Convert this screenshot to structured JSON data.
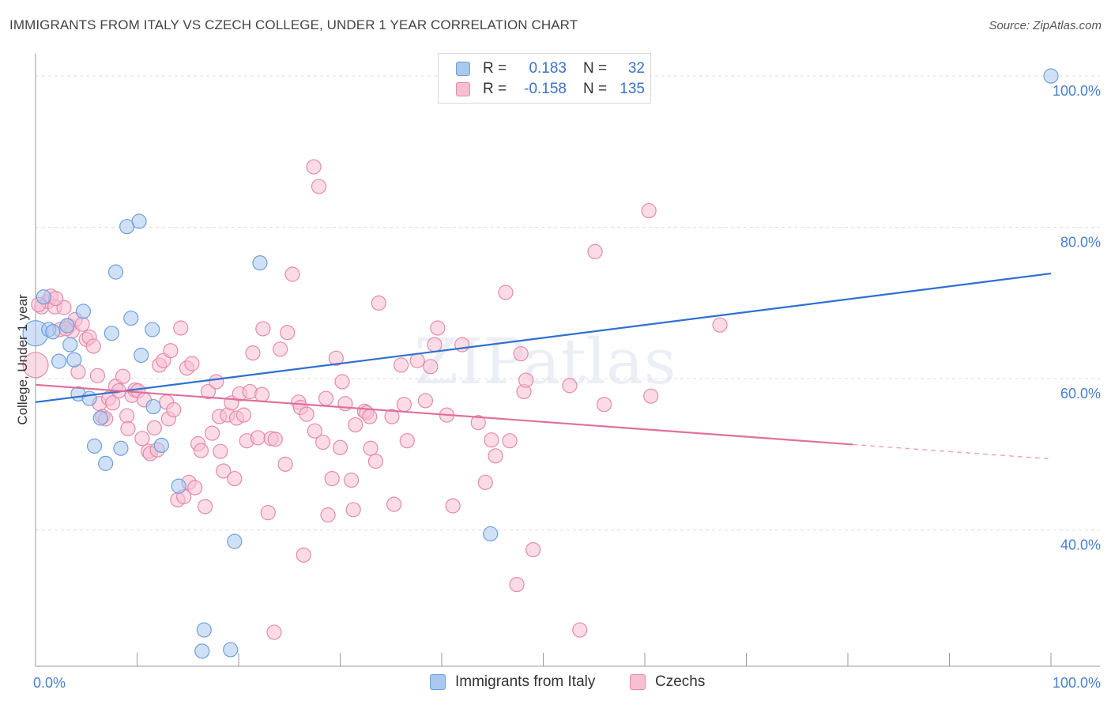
{
  "title": "IMMIGRANTS FROM ITALY VS CZECH COLLEGE, UNDER 1 YEAR CORRELATION CHART",
  "source": "Source: ZipAtlas.com",
  "watermark": "ZIPatlas",
  "legend": {
    "rows": [
      {
        "r_label": "R =",
        "r_value": "0.183",
        "n_label": "N =",
        "n_value": "32",
        "color": "#a9c8f0",
        "border": "#6f9fdc"
      },
      {
        "r_label": "R =",
        "r_value": "-0.158",
        "n_label": "N =",
        "n_value": "135",
        "color": "#f7bfd2",
        "border": "#e58aab"
      }
    ]
  },
  "bottom_legend": [
    {
      "label": "Immigrants from Italy",
      "color": "#a9c8f0",
      "border": "#6f9fdc"
    },
    {
      "label": "Czechs",
      "color": "#f7bfd2",
      "border": "#e58aab"
    }
  ],
  "chart_data": {
    "type": "scatter",
    "xlabel": "",
    "ylabel": "College, Under 1 year",
    "xlim": [
      0,
      100
    ],
    "ylim": [
      22,
      102
    ],
    "x_tick_labels": [
      "0.0%",
      "100.0%"
    ],
    "y_ticks": [
      40,
      60,
      80,
      100
    ],
    "y_tick_labels": [
      "40.0%",
      "60.0%",
      "80.0%",
      "100.0%"
    ],
    "grid": true,
    "series": [
      {
        "name": "Immigrants from Italy",
        "color": "#6f9fdc",
        "fill": "#a9c8f0",
        "trend": {
          "x": [
            0,
            100
          ],
          "y": [
            56.9,
            73.9
          ],
          "color": "#2f6fd0"
        },
        "points": [
          [
            0.0,
            66.0
          ],
          [
            0.8,
            70.8
          ],
          [
            1.3,
            66.5
          ],
          [
            1.7,
            66.2
          ],
          [
            2.3,
            62.3
          ],
          [
            3.1,
            67.0
          ],
          [
            3.4,
            64.5
          ],
          [
            3.8,
            62.5
          ],
          [
            4.2,
            58.0
          ],
          [
            4.7,
            68.9
          ],
          [
            5.3,
            57.4
          ],
          [
            5.8,
            51.1
          ],
          [
            6.4,
            54.8
          ],
          [
            6.9,
            48.8
          ],
          [
            7.5,
            66.0
          ],
          [
            7.9,
            74.1
          ],
          [
            8.4,
            50.8
          ],
          [
            9.0,
            80.1
          ],
          [
            9.4,
            68.0
          ],
          [
            10.2,
            80.8
          ],
          [
            10.4,
            63.1
          ],
          [
            11.5,
            66.5
          ],
          [
            11.6,
            56.3
          ],
          [
            12.4,
            51.2
          ],
          [
            14.1,
            45.8
          ],
          [
            16.4,
            24.0
          ],
          [
            16.6,
            26.8
          ],
          [
            19.2,
            24.2
          ],
          [
            19.6,
            38.5
          ],
          [
            22.1,
            75.3
          ],
          [
            44.8,
            39.5
          ],
          [
            100.0,
            100.0
          ]
        ]
      },
      {
        "name": "Czechs",
        "color": "#e58aab",
        "fill": "#f7bfd2",
        "trend": {
          "x": [
            0,
            80.5
          ],
          "y": [
            59.2,
            51.3
          ],
          "dash_to": [
            100,
            49.4
          ],
          "color": "#e0709a"
        },
        "points": [
          [
            0.0,
            61.8
          ],
          [
            0.6,
            69.5
          ],
          [
            1.2,
            70.2
          ],
          [
            1.5,
            70.9
          ],
          [
            1.9,
            69.5
          ],
          [
            2.4,
            66.5
          ],
          [
            2.8,
            69.4
          ],
          [
            3.3,
            67.0
          ],
          [
            3.6,
            66.3
          ],
          [
            3.9,
            67.8
          ],
          [
            4.2,
            60.9
          ],
          [
            4.6,
            67.2
          ],
          [
            5.0,
            65.2
          ],
          [
            5.3,
            65.5
          ],
          [
            5.7,
            64.3
          ],
          [
            6.1,
            60.4
          ],
          [
            6.3,
            56.7
          ],
          [
            6.6,
            55.0
          ],
          [
            6.9,
            54.7
          ],
          [
            7.2,
            57.4
          ],
          [
            7.6,
            56.8
          ],
          [
            7.9,
            59.0
          ],
          [
            8.2,
            58.4
          ],
          [
            8.6,
            60.3
          ],
          [
            9.0,
            55.1
          ],
          [
            9.1,
            53.4
          ],
          [
            9.5,
            57.8
          ],
          [
            9.8,
            58.5
          ],
          [
            10.1,
            58.4
          ],
          [
            10.5,
            52.1
          ],
          [
            10.7,
            57.2
          ],
          [
            11.1,
            50.4
          ],
          [
            11.3,
            50.1
          ],
          [
            11.7,
            53.5
          ],
          [
            12.0,
            50.6
          ],
          [
            12.2,
            61.8
          ],
          [
            12.6,
            62.4
          ],
          [
            12.9,
            56.9
          ],
          [
            13.1,
            54.7
          ],
          [
            13.3,
            63.7
          ],
          [
            13.6,
            55.9
          ],
          [
            14.0,
            44.0
          ],
          [
            14.3,
            66.7
          ],
          [
            14.6,
            44.4
          ],
          [
            14.9,
            61.4
          ],
          [
            15.1,
            46.3
          ],
          [
            15.4,
            62.0
          ],
          [
            15.7,
            45.6
          ],
          [
            16.0,
            51.4
          ],
          [
            16.3,
            50.5
          ],
          [
            16.7,
            43.1
          ],
          [
            17.0,
            58.3
          ],
          [
            17.4,
            52.8
          ],
          [
            17.8,
            59.6
          ],
          [
            18.1,
            55.0
          ],
          [
            18.2,
            50.4
          ],
          [
            18.5,
            47.8
          ],
          [
            18.9,
            55.2
          ],
          [
            19.3,
            56.8
          ],
          [
            19.6,
            46.8
          ],
          [
            19.8,
            54.8
          ],
          [
            20.1,
            58.0
          ],
          [
            20.5,
            55.2
          ],
          [
            20.8,
            51.8
          ],
          [
            21.1,
            58.3
          ],
          [
            21.4,
            63.4
          ],
          [
            21.9,
            52.2
          ],
          [
            22.3,
            57.9
          ],
          [
            22.4,
            66.6
          ],
          [
            22.9,
            42.3
          ],
          [
            23.2,
            52.1
          ],
          [
            23.6,
            52.0
          ],
          [
            23.5,
            26.5
          ],
          [
            24.1,
            63.9
          ],
          [
            24.6,
            48.7
          ],
          [
            24.8,
            66.1
          ],
          [
            25.3,
            73.8
          ],
          [
            25.9,
            56.9
          ],
          [
            26.1,
            56.2
          ],
          [
            26.4,
            36.7
          ],
          [
            26.7,
            55.3
          ],
          [
            27.4,
            88.0
          ],
          [
            27.5,
            53.1
          ],
          [
            27.9,
            85.4
          ],
          [
            28.3,
            51.6
          ],
          [
            28.6,
            57.4
          ],
          [
            28.8,
            42.0
          ],
          [
            29.2,
            46.8
          ],
          [
            29.6,
            62.7
          ],
          [
            30.0,
            50.9
          ],
          [
            30.2,
            59.6
          ],
          [
            30.5,
            56.7
          ],
          [
            31.1,
            46.6
          ],
          [
            31.3,
            42.7
          ],
          [
            31.5,
            53.9
          ],
          [
            32.4,
            55.7
          ],
          [
            32.6,
            55.5
          ],
          [
            32.9,
            55.0
          ],
          [
            33.0,
            50.8
          ],
          [
            33.5,
            49.1
          ],
          [
            33.8,
            70.0
          ],
          [
            35.1,
            55.0
          ],
          [
            35.3,
            43.4
          ],
          [
            36.3,
            56.6
          ],
          [
            36.6,
            51.8
          ],
          [
            37.6,
            62.4
          ],
          [
            38.4,
            57.1
          ],
          [
            38.9,
            61.6
          ],
          [
            39.3,
            64.5
          ],
          [
            39.6,
            66.7
          ],
          [
            40.5,
            55.2
          ],
          [
            41.1,
            43.2
          ],
          [
            42.0,
            64.5
          ],
          [
            43.6,
            54.2
          ],
          [
            44.3,
            46.3
          ],
          [
            44.9,
            51.9
          ],
          [
            45.3,
            49.8
          ],
          [
            46.3,
            71.4
          ],
          [
            46.7,
            51.8
          ],
          [
            47.4,
            32.8
          ],
          [
            47.8,
            63.3
          ],
          [
            48.1,
            58.3
          ],
          [
            48.3,
            59.8
          ],
          [
            49.0,
            37.4
          ],
          [
            52.6,
            59.1
          ],
          [
            53.6,
            26.8
          ],
          [
            55.1,
            76.8
          ],
          [
            56.0,
            56.6
          ],
          [
            60.4,
            82.2
          ],
          [
            60.6,
            57.7
          ],
          [
            67.4,
            67.1
          ],
          [
            0.3,
            69.8
          ],
          [
            2.0,
            70.6
          ],
          [
            3.0,
            66.6
          ],
          [
            36.0,
            61.8
          ]
        ]
      }
    ]
  }
}
